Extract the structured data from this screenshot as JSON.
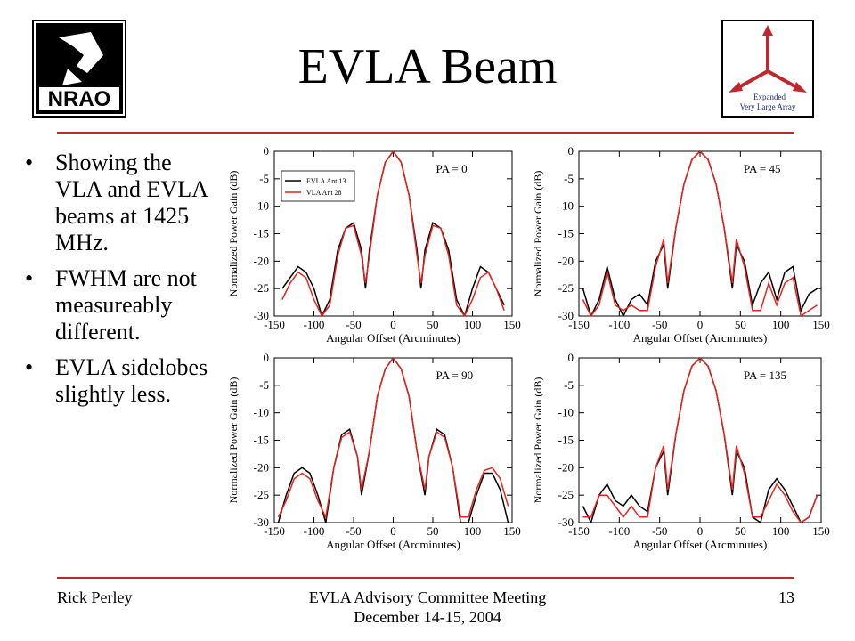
{
  "slide": {
    "title": "EVLA Beam",
    "bullets": [
      "Showing the VLA and EVLA beams at 1425 MHz.",
      "FWHM are not measureably different.",
      "EVLA sidelobes slightly less."
    ],
    "footer_left": "Rick Perley",
    "footer_center_line1": "EVLA Advisory Committee Meeting",
    "footer_center_line2": "December 14-15, 2004",
    "page_number": "13",
    "logo_left_text": "NRAO",
    "logo_right_text": [
      "Expanded",
      "Very Large Array"
    ],
    "accent_color": "#c0272d"
  },
  "chart_data": [
    {
      "type": "line",
      "panel_label": "PA = 0",
      "xlabel": "Angular Offset (Arcminutes)",
      "ylabel": "Normalized Power Gain (dB)",
      "xlim": [
        -150,
        150
      ],
      "ylim": [
        -30,
        0
      ],
      "xticks": [
        -150,
        -100,
        -50,
        0,
        50,
        100,
        150
      ],
      "yticks": [
        0,
        -5,
        -10,
        -15,
        -20,
        -25,
        -30
      ],
      "legend": "top-left",
      "series": [
        {
          "name": "EVLA Ant 13",
          "color": "#000000",
          "x": [
            -140,
            -130,
            -120,
            -110,
            -100,
            -90,
            -80,
            -70,
            -60,
            -50,
            -40,
            -35,
            -30,
            -20,
            -10,
            0,
            10,
            20,
            30,
            35,
            40,
            50,
            60,
            70,
            80,
            90,
            100,
            110,
            120,
            130,
            140
          ],
          "y": [
            -25,
            -23,
            -21,
            -22,
            -25,
            -30,
            -27,
            -18,
            -14,
            -13,
            -18,
            -25,
            -18,
            -8,
            -2,
            0,
            -2,
            -8,
            -18,
            -25,
            -18,
            -13,
            -14,
            -18,
            -27,
            -30,
            -25,
            -21,
            -22,
            -25,
            -28
          ]
        },
        {
          "name": "VLA Ant 28",
          "color": "#e8231f",
          "x": [
            -140,
            -130,
            -120,
            -110,
            -100,
            -90,
            -80,
            -70,
            -60,
            -50,
            -40,
            -35,
            -30,
            -20,
            -10,
            0,
            10,
            20,
            30,
            35,
            40,
            50,
            60,
            70,
            80,
            90,
            100,
            110,
            120,
            130,
            140
          ],
          "y": [
            -27,
            -24,
            -22,
            -23,
            -27,
            -30,
            -28,
            -19,
            -14,
            -13.5,
            -19,
            -24,
            -19,
            -8,
            -2,
            0,
            -2,
            -8,
            -19,
            -24,
            -19,
            -13.5,
            -14,
            -19,
            -28,
            -30,
            -27,
            -23,
            -22,
            -25,
            -29
          ]
        }
      ]
    },
    {
      "type": "line",
      "panel_label": "PA = 45",
      "xlabel": "Angular Offset (Arcminutes)",
      "ylabel": "Normalized Power Gain (dB)",
      "xlim": [
        -150,
        150
      ],
      "ylim": [
        -30,
        0
      ],
      "xticks": [
        -150,
        -100,
        -50,
        0,
        50,
        100,
        150
      ],
      "yticks": [
        0,
        -5,
        -10,
        -15,
        -20,
        -25,
        -30
      ],
      "series": [
        {
          "name": "EVLA Ant 13",
          "color": "#000000",
          "x": [
            -145,
            -135,
            -125,
            -115,
            -105,
            -95,
            -85,
            -75,
            -65,
            -55,
            -45,
            -40,
            -30,
            -20,
            -10,
            0,
            10,
            20,
            30,
            40,
            45,
            55,
            65,
            75,
            85,
            95,
            105,
            115,
            125,
            135,
            145
          ],
          "y": [
            -25,
            -30,
            -27,
            -21,
            -27,
            -30,
            -27,
            -26,
            -28,
            -20,
            -17,
            -25,
            -14,
            -6,
            -1.5,
            0,
            -1.5,
            -6,
            -14,
            -25,
            -17,
            -20,
            -28,
            -24,
            -22,
            -27,
            -22,
            -21,
            -29,
            -26,
            -25
          ]
        },
        {
          "name": "VLA Ant 28",
          "color": "#e8231f",
          "x": [
            -145,
            -135,
            -125,
            -115,
            -105,
            -95,
            -85,
            -75,
            -65,
            -55,
            -45,
            -40,
            -30,
            -20,
            -10,
            0,
            10,
            20,
            30,
            40,
            45,
            55,
            65,
            75,
            85,
            95,
            105,
            115,
            125,
            135,
            145
          ],
          "y": [
            -27,
            -30,
            -28,
            -22,
            -28,
            -29,
            -28,
            -29,
            -29,
            -21,
            -16,
            -24,
            -14,
            -6,
            -1.5,
            0,
            -1.5,
            -6,
            -14,
            -24,
            -16,
            -21,
            -29,
            -29,
            -24,
            -28,
            -24,
            -23,
            -30,
            -29,
            -28
          ]
        }
      ]
    },
    {
      "type": "line",
      "panel_label": "PA = 90",
      "xlabel": "Angular Offset (Arcminutes)",
      "ylabel": "Normalized Power Gain (dB)",
      "xlim": [
        -150,
        150
      ],
      "ylim": [
        -30,
        0
      ],
      "xticks": [
        -150,
        -100,
        -50,
        0,
        50,
        100,
        150
      ],
      "yticks": [
        0,
        -5,
        -10,
        -15,
        -20,
        -25,
        -30
      ],
      "series": [
        {
          "name": "EVLA Ant 13",
          "color": "#000000",
          "x": [
            -145,
            -135,
            -125,
            -115,
            -105,
            -95,
            -85,
            -75,
            -65,
            -55,
            -45,
            -40,
            -30,
            -20,
            -10,
            0,
            10,
            20,
            30,
            40,
            45,
            55,
            65,
            75,
            85,
            95,
            105,
            115,
            125,
            135,
            145
          ],
          "y": [
            -30,
            -25,
            -21,
            -20,
            -21,
            -25,
            -30,
            -20,
            -14,
            -13,
            -18,
            -25,
            -17,
            -7,
            -2,
            0,
            -2,
            -7,
            -17,
            -25,
            -18,
            -13,
            -14,
            -20,
            -30,
            -30,
            -25,
            -21,
            -21,
            -24,
            -30
          ]
        },
        {
          "name": "VLA Ant 28",
          "color": "#e8231f",
          "x": [
            -145,
            -135,
            -125,
            -115,
            -105,
            -95,
            -85,
            -75,
            -65,
            -55,
            -45,
            -40,
            -30,
            -20,
            -10,
            0,
            10,
            20,
            30,
            40,
            45,
            55,
            65,
            75,
            85,
            95,
            105,
            115,
            125,
            135,
            145
          ],
          "y": [
            -29,
            -26,
            -22,
            -21,
            -22,
            -26,
            -29,
            -20,
            -14.5,
            -13.5,
            -18,
            -24,
            -17,
            -7,
            -2,
            0,
            -2,
            -7,
            -17,
            -24,
            -18,
            -13.5,
            -14.5,
            -20,
            -29,
            -29,
            -24,
            -20.5,
            -20,
            -22,
            -27
          ]
        }
      ]
    },
    {
      "type": "line",
      "panel_label": "PA = 135",
      "xlabel": "Angular Offset (Arcminutes)",
      "ylabel": "Normalized Power Gain (dB)",
      "xlim": [
        -150,
        150
      ],
      "ylim": [
        -30,
        0
      ],
      "xticks": [
        -150,
        -100,
        -50,
        0,
        50,
        100,
        150
      ],
      "yticks": [
        0,
        -5,
        -10,
        -15,
        -20,
        -25,
        -30
      ],
      "series": [
        {
          "name": "EVLA Ant 13",
          "color": "#000000",
          "x": [
            -145,
            -135,
            -125,
            -115,
            -105,
            -95,
            -85,
            -75,
            -65,
            -55,
            -45,
            -40,
            -30,
            -20,
            -10,
            0,
            10,
            20,
            30,
            40,
            45,
            55,
            65,
            75,
            85,
            95,
            105,
            115,
            125,
            135,
            145
          ],
          "y": [
            -27,
            -30,
            -25,
            -23,
            -26,
            -27,
            -25,
            -27,
            -28,
            -20,
            -17,
            -25,
            -14,
            -6,
            -1.5,
            0,
            -1.5,
            -6,
            -14,
            -25,
            -17,
            -20,
            -29,
            -30,
            -24,
            -22,
            -24,
            -27,
            -30,
            -29,
            -25
          ]
        },
        {
          "name": "VLA Ant 28",
          "color": "#e8231f",
          "x": [
            -145,
            -135,
            -125,
            -115,
            -105,
            -95,
            -85,
            -75,
            -65,
            -55,
            -45,
            -40,
            -30,
            -20,
            -10,
            0,
            10,
            20,
            30,
            40,
            45,
            55,
            65,
            75,
            85,
            95,
            105,
            115,
            125,
            135,
            145
          ],
          "y": [
            -29,
            -29,
            -25,
            -25,
            -27,
            -29,
            -27,
            -29,
            -29,
            -20,
            -16,
            -24,
            -14,
            -6,
            -1.5,
            0,
            -1.5,
            -6,
            -14,
            -24,
            -16,
            -21,
            -29,
            -29,
            -26,
            -23,
            -25,
            -28,
            -30,
            -29,
            -25
          ]
        }
      ]
    }
  ]
}
